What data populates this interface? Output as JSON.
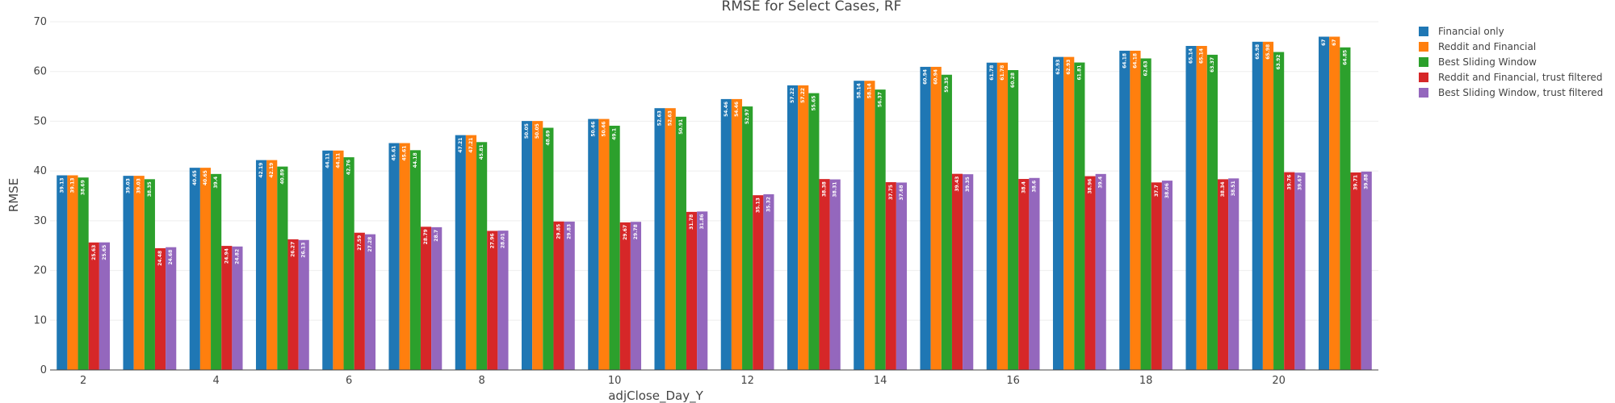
{
  "chart_data": {
    "type": "bar",
    "title": "RMSE for Select Cases, RF",
    "xlabel": "adjClose_Day_Y",
    "ylabel": "RMSE",
    "ylim": [
      0,
      70
    ],
    "yticks": [
      0,
      10,
      20,
      30,
      40,
      50,
      60,
      70
    ],
    "xticks": [
      2,
      4,
      6,
      8,
      10,
      12,
      14,
      16,
      18,
      20
    ],
    "grid": true,
    "legend_position": "top-right",
    "x": [
      2,
      3,
      4,
      5,
      6,
      7,
      8,
      9,
      10,
      11,
      12,
      13,
      14,
      15,
      16,
      17,
      18,
      19,
      20,
      21
    ],
    "series": [
      {
        "name": "Financial only",
        "color": "#1f77b4",
        "values": [
          39.13,
          39.03,
          40.65,
          42.19,
          44.11,
          45.61,
          47.21,
          50.05,
          50.46,
          52.63,
          54.46,
          57.22,
          58.14,
          60.94,
          61.78,
          62.93,
          64.18,
          65.14,
          65.98,
          67.0
        ]
      },
      {
        "name": "Reddit and Financial",
        "color": "#ff7f0e",
        "values": [
          39.13,
          39.03,
          40.65,
          42.19,
          44.11,
          45.61,
          47.21,
          50.05,
          50.46,
          52.63,
          54.46,
          57.22,
          58.14,
          60.94,
          61.78,
          62.93,
          64.18,
          65.14,
          65.98,
          67.0
        ]
      },
      {
        "name": "Best Sliding Window",
        "color": "#2ca02c",
        "values": [
          38.69,
          38.35,
          39.4,
          40.89,
          42.76,
          44.18,
          45.81,
          48.69,
          49.1,
          50.91,
          52.97,
          55.65,
          56.37,
          59.35,
          60.28,
          61.81,
          62.63,
          63.37,
          63.92,
          64.85
        ]
      },
      {
        "name": "Reddit and Financial, trust filtered",
        "color": "#d62728",
        "values": [
          25.63,
          24.48,
          24.94,
          26.27,
          27.59,
          28.79,
          27.96,
          29.85,
          29.67,
          31.78,
          35.13,
          38.38,
          37.75,
          39.43,
          38.4,
          38.96,
          37.7,
          38.34,
          39.76,
          39.71
        ]
      },
      {
        "name": "Best Sliding Window, trust filtered",
        "color": "#9467bd",
        "values": [
          25.65,
          24.68,
          24.82,
          26.13,
          27.28,
          28.7,
          28.01,
          29.83,
          29.78,
          31.86,
          35.32,
          38.31,
          37.68,
          39.35,
          38.6,
          39.4,
          38.06,
          38.51,
          39.67,
          39.88
        ]
      }
    ]
  }
}
